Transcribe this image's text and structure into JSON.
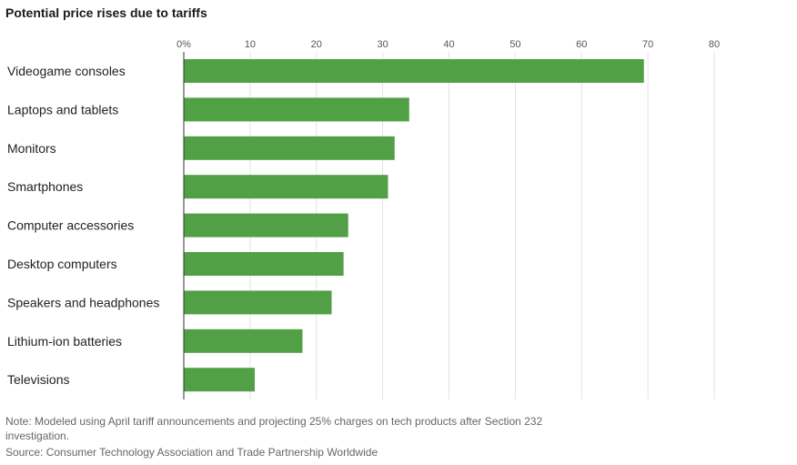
{
  "chart_data": {
    "type": "bar",
    "orientation": "horizontal",
    "title": "Potential price rises due to tariffs",
    "categories": [
      "Videogame consoles",
      "Laptops and tablets",
      "Monitors",
      "Smartphones",
      "Computer accessories",
      "Desktop computers",
      "Speakers and headphones",
      "Lithium-ion batteries",
      "Televisions"
    ],
    "values": [
      69.4,
      34,
      31.8,
      30.8,
      24.8,
      24.1,
      22.3,
      17.9,
      10.7
    ],
    "xlim": [
      0,
      80
    ],
    "ticks": [
      0,
      10,
      20,
      30,
      40,
      50,
      60,
      70,
      80
    ],
    "tick_labels": [
      "0%",
      "10",
      "20",
      "30",
      "40",
      "50",
      "60",
      "70",
      "80"
    ],
    "tick_position": "top",
    "grid": true,
    "bar_color": "#52a046",
    "grid_color": "#e3e3e3",
    "axis_color": "#333333"
  },
  "footer": {
    "note": "Note: Modeled using April tariff announcements and projecting 25% charges on tech products after Section 232 investigation.",
    "source": "Source: Consumer Technology Association and Trade Partnership Worldwide"
  }
}
